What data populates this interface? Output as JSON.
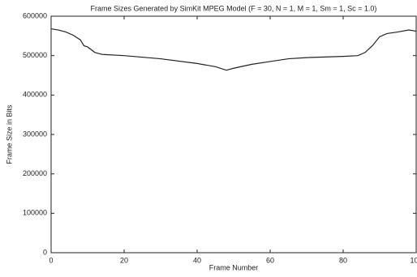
{
  "chart_data": {
    "type": "line",
    "title": "Frame Sizes Generated by SimKit MPEG Model (F = 30, N = 1, M = 1, Sm = 1, Sc = 1.0)",
    "x_label": "Frame Number",
    "y_label": "Frame Size in Bits",
    "x": [
      0,
      2,
      4,
      6,
      8,
      9,
      10,
      12,
      14,
      20,
      30,
      40,
      45,
      48,
      50,
      55,
      60,
      65,
      70,
      80,
      84,
      86,
      88,
      90,
      92,
      95,
      98,
      100
    ],
    "series": [
      {
        "color": "#222222",
        "values": [
          568000,
          565000,
          560000,
          552000,
          540000,
          525000,
          522000,
          508000,
          503000,
          500000,
          492000,
          480000,
          472000,
          463000,
          468000,
          478000,
          485000,
          492000,
          495000,
          498000,
          500000,
          508000,
          525000,
          548000,
          556000,
          560000,
          565000,
          562000
        ]
      }
    ],
    "xlim": [
      0,
      100
    ],
    "xticks": [
      0,
      20,
      40,
      60,
      80,
      100
    ],
    "ylim": [
      0,
      600000
    ],
    "yticks": [
      0,
      100000,
      200000,
      300000,
      400000,
      500000,
      600000
    ]
  }
}
